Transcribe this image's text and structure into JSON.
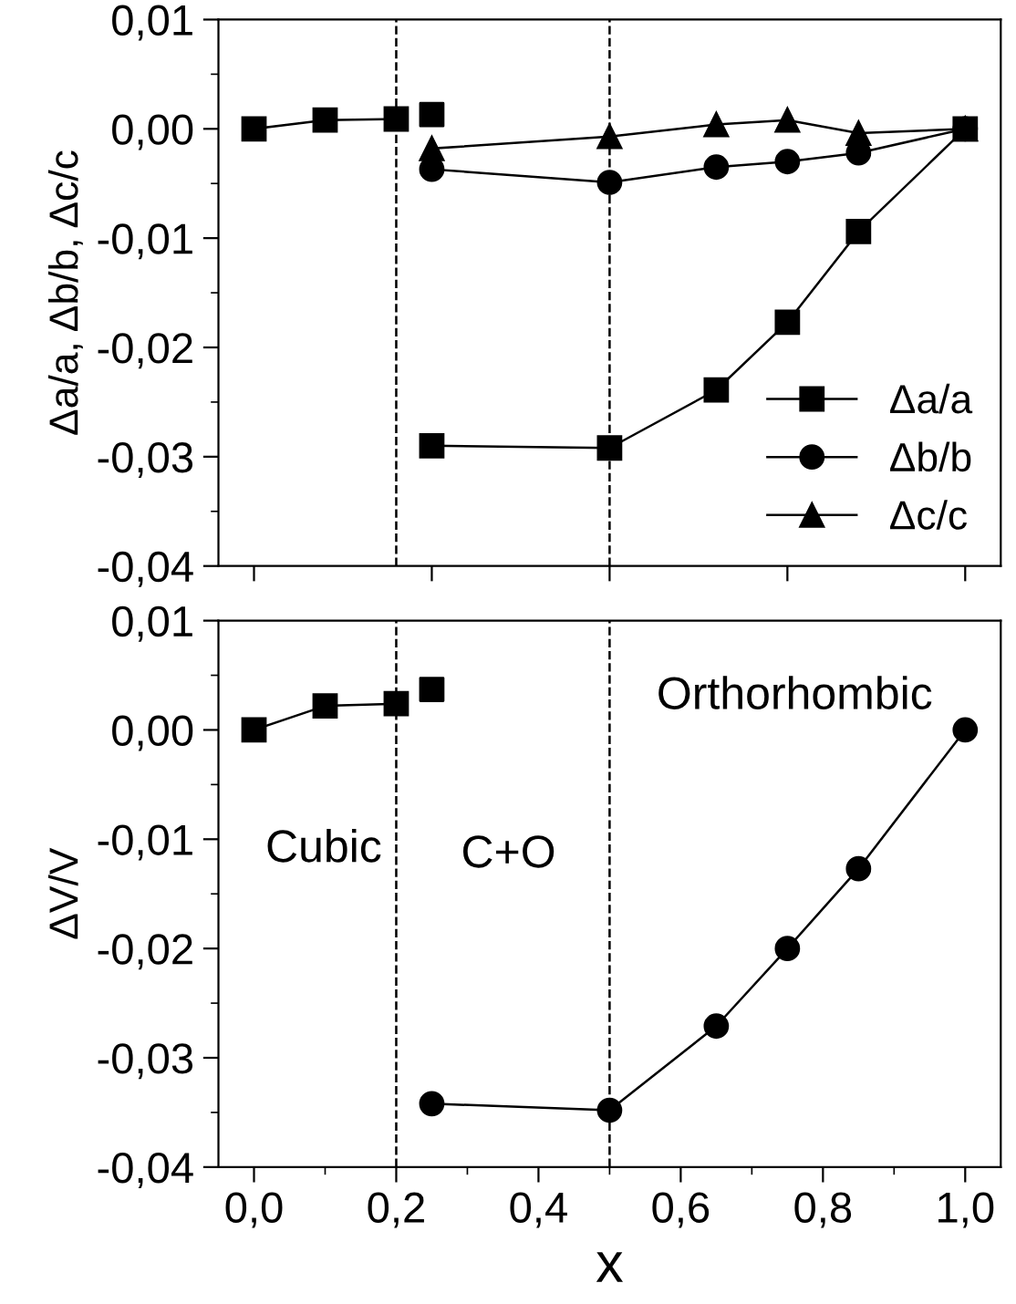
{
  "chart_data": [
    {
      "type": "line",
      "ylabel": "Δa/a, Δb/b, Δc/c",
      "xlim": [
        -0.05,
        1.05
      ],
      "ylim": [
        -0.04,
        0.01
      ],
      "xticks": [
        {
          "value": 0,
          "label": null
        },
        {
          "value": 0.25,
          "label": null
        },
        {
          "value": 0.5,
          "label": null
        },
        {
          "value": 0.75,
          "label": null
        },
        {
          "value": 1.0,
          "label": null
        }
      ],
      "yticks": [
        {
          "value": -0.04,
          "label": "-0,04"
        },
        {
          "value": -0.03,
          "label": "-0,03"
        },
        {
          "value": -0.02,
          "label": "-0,02"
        },
        {
          "value": -0.01,
          "label": "-0,01"
        },
        {
          "value": 0,
          "label": "0,00"
        },
        {
          "value": 0.01,
          "label": "0,01"
        }
      ],
      "tick_labels": "y",
      "legend": "bottom right",
      "grid": false,
      "ref_lines": [
        {
          "axis": "x",
          "value": 0.2,
          "line_style": "dashed",
          "color": "#000000"
        },
        {
          "axis": "x",
          "value": 0.5,
          "line_style": "dashed",
          "color": "#000000"
        }
      ],
      "series": [
        {
          "name": "Δa/a",
          "color": "#000000",
          "marker": "square",
          "x": [
            0,
            0.1,
            0.2
          ],
          "values": [
            0,
            0.0008,
            0.0009
          ]
        },
        {
          "color": "#000000",
          "marker": "square",
          "x": [
            0.25,
            0.5,
            0.65,
            0.75,
            0.85,
            1.0
          ],
          "values": [
            -0.029,
            -0.0292,
            -0.0239,
            -0.0177,
            -0.0094,
            0
          ]
        },
        {
          "type": "scatter",
          "color": "#000000",
          "marker": "square",
          "x": [
            0.25
          ],
          "values": [
            0.0013
          ]
        },
        {
          "name": "Δb/b",
          "color": "#000000",
          "marker": "circle",
          "x": [
            0.25,
            0.5,
            0.65,
            0.75,
            0.85,
            1.0
          ],
          "values": [
            -0.0037,
            -0.0049,
            -0.0035,
            -0.003,
            -0.0022,
            0
          ]
        },
        {
          "name": "Δc/c",
          "color": "#000000",
          "marker": "triangle",
          "x": [
            0.25,
            0.5,
            0.65,
            0.75,
            0.85,
            1.0
          ],
          "values": [
            -0.0018,
            -0.0007,
            0.0004,
            0.0008,
            -0.0004,
            0
          ]
        }
      ]
    },
    {
      "type": "line",
      "xlabel": "x",
      "ylabel": "ΔV/V",
      "xlim": [
        -0.05,
        1.05
      ],
      "ylim": [
        -0.04,
        0.01
      ],
      "xticks": [
        {
          "value": 0,
          "label": "0,0"
        },
        {
          "value": 0.2,
          "label": "0,2"
        },
        {
          "value": 0.4,
          "label": "0,4"
        },
        {
          "value": 0.6,
          "label": "0,6"
        },
        {
          "value": 0.8,
          "label": "0,8"
        },
        {
          "value": 1.0,
          "label": "1,0"
        }
      ],
      "yticks": [
        {
          "value": -0.04,
          "label": "-0,04"
        },
        {
          "value": -0.03,
          "label": "-0,03"
        },
        {
          "value": -0.02,
          "label": "-0,02"
        },
        {
          "value": -0.01,
          "label": "-0,01"
        },
        {
          "value": 0,
          "label": "0,00"
        },
        {
          "value": 0.01,
          "label": "0,01"
        }
      ],
      "grid": false,
      "legend": false,
      "annotations": [
        "Cubic",
        "C+O",
        "Orthorhombic"
      ],
      "ref_lines": [
        {
          "axis": "x",
          "value": 0.2,
          "line_style": "dashed",
          "color": "#000000"
        },
        {
          "axis": "x",
          "value": 0.5,
          "line_style": "dashed",
          "color": "#000000"
        }
      ],
      "series": [
        {
          "color": "#000000",
          "marker": "square",
          "x": [
            0,
            0.1,
            0.2
          ],
          "values": [
            0,
            0.0022,
            0.0024
          ]
        },
        {
          "type": "scatter",
          "color": "#000000",
          "marker": "square",
          "x": [
            0.25
          ],
          "values": [
            0.0037
          ]
        },
        {
          "color": "#000000",
          "marker": "circle",
          "x": [
            0.25,
            0.5,
            0.65,
            0.75,
            0.85,
            1.0
          ],
          "values": [
            -0.0342,
            -0.0348,
            -0.0271,
            -0.02,
            -0.0127,
            0
          ]
        }
      ]
    }
  ]
}
